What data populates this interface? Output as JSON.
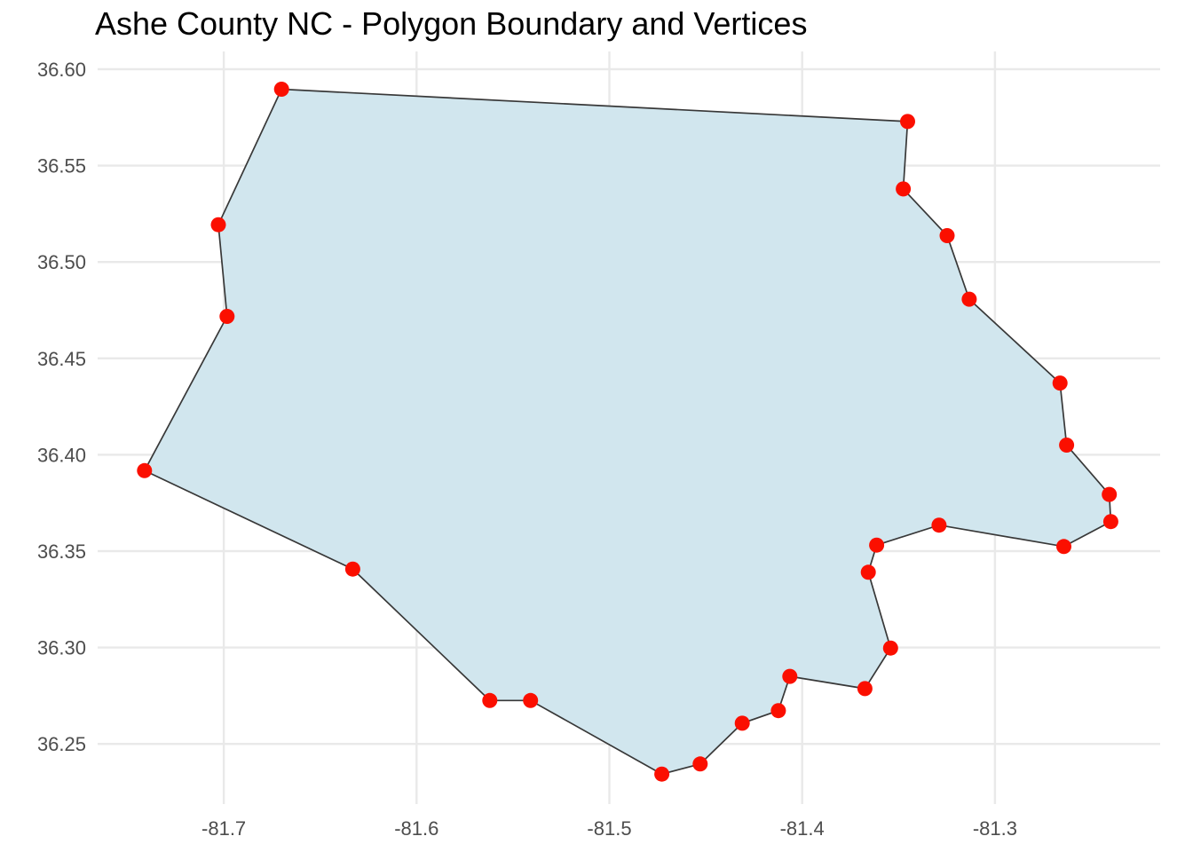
{
  "chart_data": {
    "type": "scatter",
    "geometry": "filled-polygon-with-vertex-points",
    "title": "Ashe County NC - Polygon Boundary and Vertices",
    "xlabel": "",
    "ylabel": "",
    "xlim": [
      -81.7654,
      -81.2143
    ],
    "ylim": [
      36.2188,
      36.6092
    ],
    "x_ticks": [
      -81.7,
      -81.6,
      -81.5,
      -81.4,
      -81.3
    ],
    "x_tick_labels": [
      "-81.7",
      "-81.6",
      "-81.5",
      "-81.4",
      "-81.3"
    ],
    "y_ticks": [
      36.25,
      36.3,
      36.35,
      36.4,
      36.45,
      36.5,
      36.55,
      36.6
    ],
    "y_tick_labels": [
      "36.25",
      "36.30",
      "36.35",
      "36.40",
      "36.45",
      "36.50",
      "36.55",
      "36.60"
    ],
    "grid": "major-only",
    "legend": "none",
    "vertices": [
      [
        -81.47276,
        36.23436
      ],
      [
        -81.54084,
        36.27251
      ],
      [
        -81.56198,
        36.27251
      ],
      [
        -81.63306,
        36.34069
      ],
      [
        -81.74107,
        36.39178
      ],
      [
        -81.69828,
        36.47178
      ],
      [
        -81.7028,
        36.51934
      ],
      [
        -81.67,
        36.58965
      ],
      [
        -81.3453,
        36.57286
      ],
      [
        -81.34754,
        36.53791
      ],
      [
        -81.32478,
        36.51368
      ],
      [
        -81.31332,
        36.4807
      ],
      [
        -81.26624,
        36.43721
      ],
      [
        -81.26284,
        36.40504
      ],
      [
        -81.24069,
        36.37942
      ],
      [
        -81.23989,
        36.36536
      ],
      [
        -81.26424,
        36.35241
      ],
      [
        -81.32899,
        36.3635
      ],
      [
        -81.36137,
        36.35316
      ],
      [
        -81.36569,
        36.33905
      ],
      [
        -81.35413,
        36.29972
      ],
      [
        -81.36745,
        36.2787
      ],
      [
        -81.40639,
        36.28505
      ],
      [
        -81.41233,
        36.26729
      ],
      [
        -81.43104,
        36.26072
      ],
      [
        -81.45289,
        36.23959
      ]
    ],
    "colors": {
      "polygon_fill": "#D1E6EE",
      "polygon_stroke": "#383838",
      "point_fill": "#FB0F00",
      "gridline": "#E9E9E9",
      "axis_text": "#4D4D4D",
      "title_text": "#000000",
      "background": "#FFFFFF"
    },
    "style": {
      "point_radius": 8.5,
      "polygon_stroke_width": 1.7,
      "gridline_width": 2.4
    }
  }
}
